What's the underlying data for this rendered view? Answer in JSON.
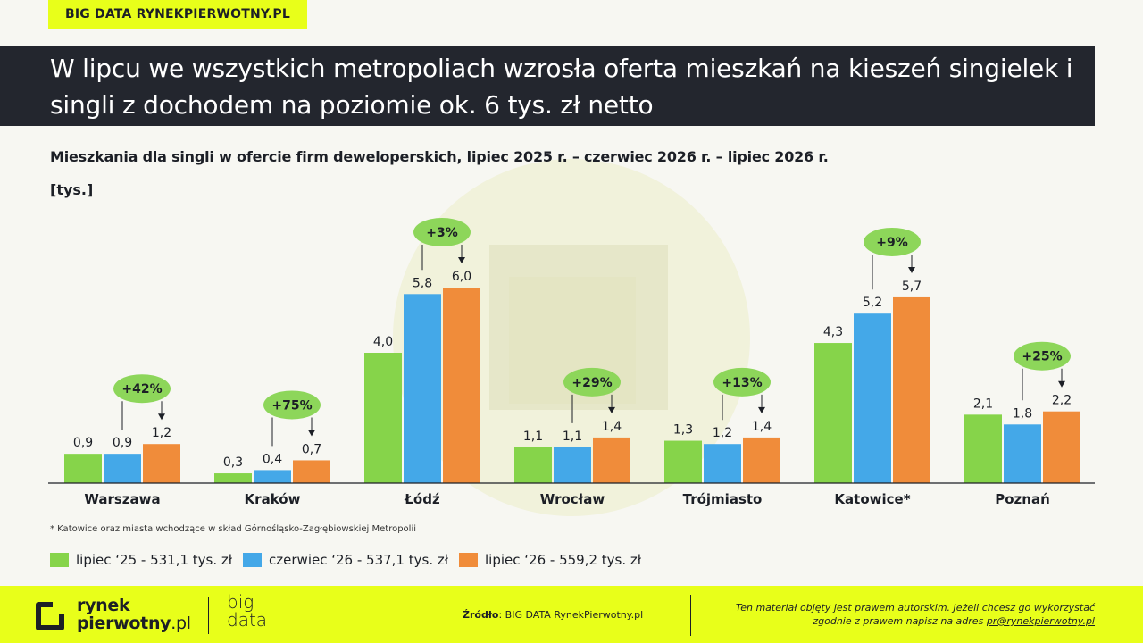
{
  "tag": "BIG DATA RYNEKPIERWOTNY.PL",
  "title": "W lipcu we wszystkich metropoliach wzrosła oferta mieszkań na kieszeń singielek i singli z dochodem na poziomie ok. 6 tys. zł netto",
  "colors": {
    "accent": "#e8ff1a",
    "dark": "#23262e",
    "green": "#86d44a",
    "blue": "#44a8e8",
    "orange": "#f08c3a",
    "badge": "#8dd65a"
  },
  "chart_data": {
    "type": "bar",
    "title": "Mieszkania dla singli w ofercie firm deweloperskich, lipiec 2025 r.  – czerwiec 2026 r. – lipiec 2026 r.",
    "ylabel": "[tys.]",
    "ylim": [
      0,
      6.0
    ],
    "categories": [
      "Warszawa",
      "Kraków",
      "Łódź",
      "Wrocław",
      "Trójmiasto",
      "Katowice*",
      "Poznań"
    ],
    "series": [
      {
        "name": "lipiec ‘25 - 531,1 tys. zł",
        "values": [
          0.9,
          0.3,
          4.0,
          1.1,
          1.3,
          4.3,
          2.1
        ],
        "labels": [
          "0,9",
          "0,3",
          "4,0",
          "1,1",
          "1,3",
          "4,3",
          "2,1"
        ],
        "color": "#86d44a"
      },
      {
        "name": "czerwiec ‘26 - 537,1 tys. zł",
        "values": [
          0.9,
          0.4,
          5.8,
          1.1,
          1.2,
          5.2,
          1.8
        ],
        "labels": [
          "0,9",
          "0,4",
          "5,8",
          "1,1",
          "1,2",
          "5,2",
          "1,8"
        ],
        "color": "#44a8e8"
      },
      {
        "name": "lipiec ‘26 - 559,2 tys. zł",
        "values": [
          1.2,
          0.7,
          6.0,
          1.4,
          1.4,
          5.7,
          2.2
        ],
        "labels": [
          "1,2",
          "0,7",
          "6,0",
          "1,4",
          "1,4",
          "5,7",
          "2,2"
        ],
        "color": "#f08c3a"
      }
    ],
    "changes": [
      "+42%",
      "+75%",
      "+3%",
      "+29%",
      "+13%",
      "+9%",
      "+25%"
    ],
    "grid": false,
    "legend_position": "bottom-left"
  },
  "footnote": "* Katowice oraz miasta wchodzące w skład Górnośląsko-Zagłębiowskiej Metropolii",
  "footer": {
    "logo_line1": "rynek",
    "logo_line2": "pierwotny",
    "logo_suffix": ".pl",
    "bigdata_line1": "big",
    "bigdata_line2": "data",
    "source_label": "Źródło",
    "source_text": ": BIG DATA RynekPierwotny.pl",
    "copyright_line1": "Ten materiał objęty jest prawem autorskim. Jeżeli chcesz go wykorzystać",
    "copyright_line2": "zgodnie z prawem napisz na adres ",
    "copyright_email": "pr@rynekpierwotny.pl"
  }
}
